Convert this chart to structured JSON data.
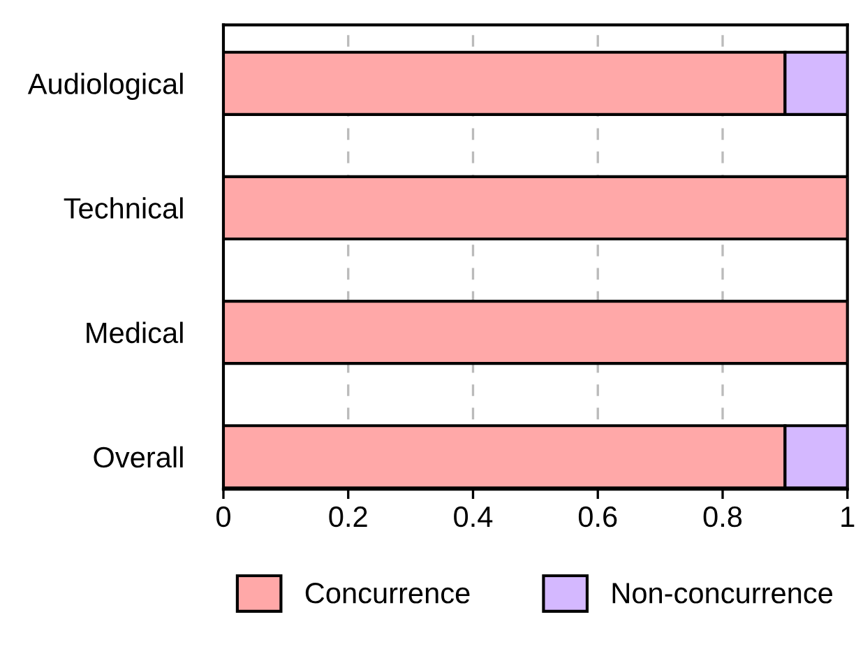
{
  "chart_data": {
    "type": "bar",
    "orientation": "horizontal",
    "stacked": true,
    "categories": [
      "Audiological",
      "Technical",
      "Medical",
      "Overall"
    ],
    "series": [
      {
        "name": "Concurrence",
        "color": "#ffa8a8",
        "values": [
          0.9,
          1,
          1,
          0.9
        ]
      },
      {
        "name": "Non-concurrence",
        "color": "#d4b8ff",
        "values": [
          0.1,
          0,
          0,
          0.1
        ]
      }
    ],
    "xlim": [
      0,
      1
    ],
    "xticks": [
      0,
      0.2,
      0.4,
      0.6,
      0.8,
      1
    ],
    "grid": "x",
    "legend": "bottom"
  }
}
